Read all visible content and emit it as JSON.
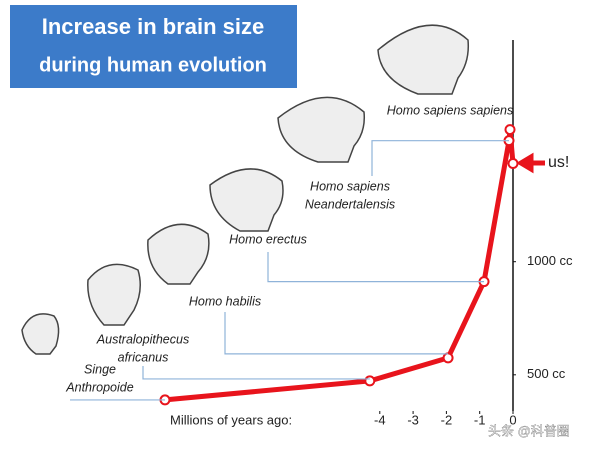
{
  "chart_data": {
    "type": "line",
    "title": [
      "Increase in brain size",
      "during human evolution"
    ],
    "x_label": "Millions of years ago:",
    "x": [
      -10.45,
      -4.3,
      -1.95,
      -0.87,
      -0.12,
      -0.09,
      0
    ],
    "values": [
      389,
      473,
      575,
      912,
      1535,
      1584,
      1434
    ],
    "point_labels": [
      [
        "Singe",
        "Anthropoide"
      ],
      [
        "Australopithecus",
        "africanus"
      ],
      [
        "Homo habilis"
      ],
      [
        "Homo erectus"
      ],
      [
        "Homo sapiens",
        "Neandertalensis"
      ],
      [
        "Homo sapiens sapiens"
      ],
      null
    ],
    "annotation": "us!",
    "color": "#e8141c",
    "xlim": [
      -10.6,
      0
    ],
    "xticks": [
      -4,
      -3,
      -2,
      -1,
      0
    ],
    "ylim": [
      340,
      1980
    ],
    "yticks": [
      {
        "value": 500,
        "label": "500 cc"
      },
      {
        "value": 1000,
        "label": "1000 cc"
      }
    ],
    "watermark": "头条 @科普圈"
  }
}
